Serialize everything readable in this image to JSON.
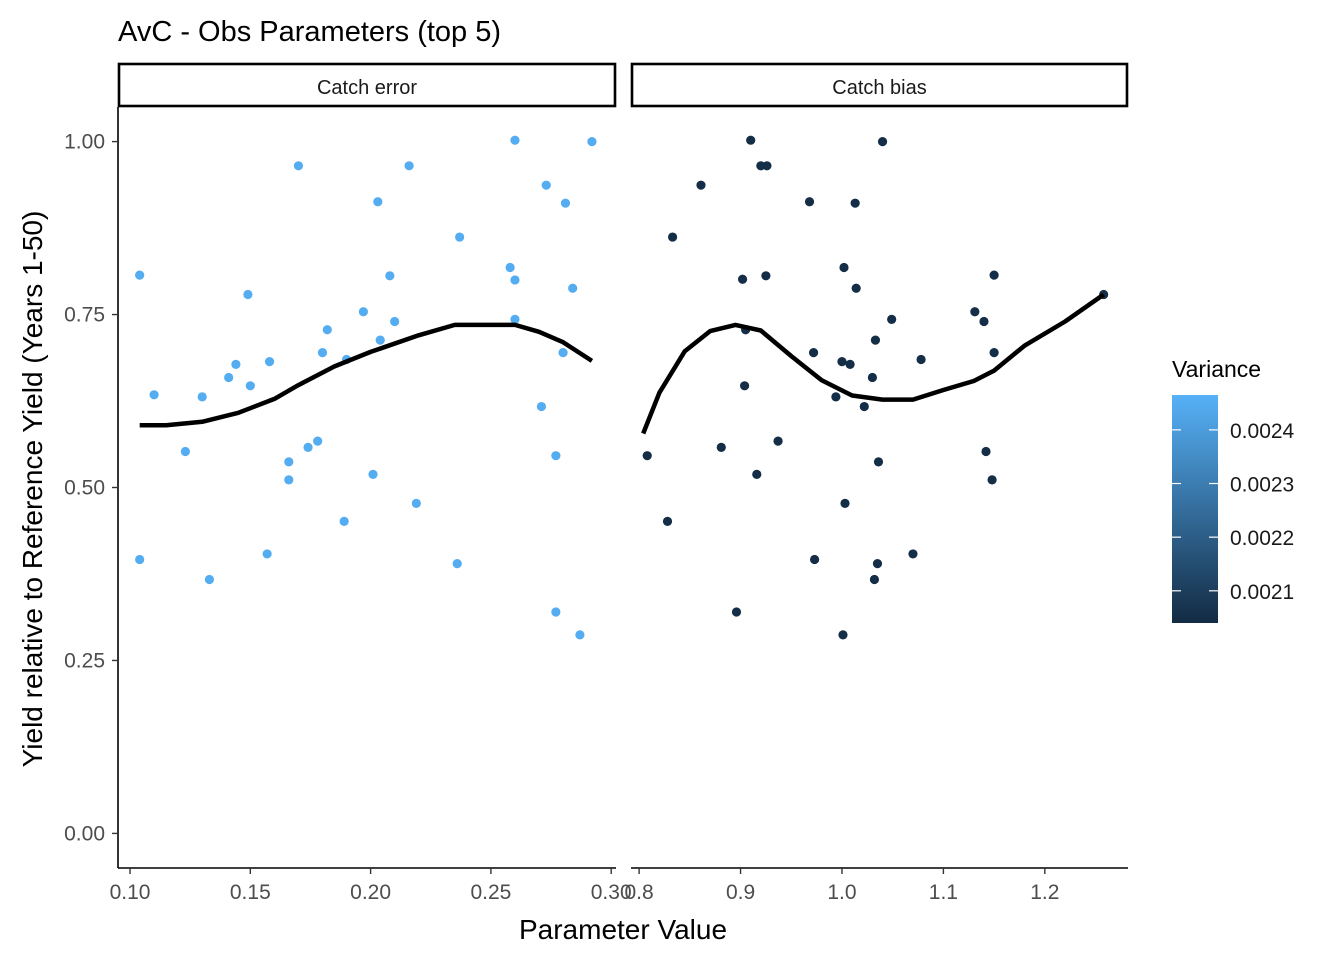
{
  "title": "AvC - Obs Parameters (top 5)",
  "colors": {
    "low": "#132B43",
    "high": "#56B1F7",
    "smooth": "#000000",
    "axis": "#000000",
    "tick_text": "#4D4D4D"
  },
  "chart_data": {
    "type": "scatter",
    "xlabel": "Parameter Value",
    "ylabel": "Yield relative to Reference Yield (Years 1-50)",
    "ylim": [
      -0.05,
      1.05
    ],
    "y_ticks": [
      {
        "value": 0.0,
        "label": "0.00"
      },
      {
        "value": 0.25,
        "label": "0.25"
      },
      {
        "value": 0.5,
        "label": "0.50"
      },
      {
        "value": 0.75,
        "label": "0.75"
      },
      {
        "value": 1.0,
        "label": "1.00"
      }
    ],
    "grid": false,
    "legend": {
      "title": "Variance",
      "placement": "right",
      "range": [
        0.00204,
        0.002465
      ],
      "ticks": [
        {
          "value": 0.0021,
          "label": "0.0021"
        },
        {
          "value": 0.0022,
          "label": "0.0022"
        },
        {
          "value": 0.0023,
          "label": "0.0023"
        },
        {
          "value": 0.0024,
          "label": "0.0024"
        }
      ]
    },
    "panels": [
      {
        "strip": "Catch error",
        "variance": 0.00245,
        "xlim": [
          0.095,
          0.302
        ],
        "x_ticks": [
          {
            "value": 0.1,
            "label": "0.10"
          },
          {
            "value": 0.15,
            "label": "0.15"
          },
          {
            "value": 0.2,
            "label": "0.20"
          },
          {
            "value": 0.25,
            "label": "0.25"
          },
          {
            "value": 0.3,
            "label": "0.30"
          }
        ],
        "points": [
          [
            0.104,
            0.807
          ],
          [
            0.104,
            0.396
          ],
          [
            0.11,
            0.634
          ],
          [
            0.123,
            0.552
          ],
          [
            0.13,
            0.631
          ],
          [
            0.133,
            0.367
          ],
          [
            0.141,
            0.659
          ],
          [
            0.144,
            0.678
          ],
          [
            0.149,
            0.779
          ],
          [
            0.15,
            0.647
          ],
          [
            0.157,
            0.404
          ],
          [
            0.158,
            0.682
          ],
          [
            0.166,
            0.537
          ],
          [
            0.166,
            0.511
          ],
          [
            0.17,
            0.965
          ],
          [
            0.174,
            0.558
          ],
          [
            0.178,
            0.567
          ],
          [
            0.18,
            0.695
          ],
          [
            0.182,
            0.728
          ],
          [
            0.189,
            0.451
          ],
          [
            0.19,
            0.685
          ],
          [
            0.197,
            0.754
          ],
          [
            0.201,
            0.519
          ],
          [
            0.203,
            0.913
          ],
          [
            0.204,
            0.713
          ],
          [
            0.208,
            0.806
          ],
          [
            0.21,
            0.74
          ],
          [
            0.216,
            0.965
          ],
          [
            0.219,
            0.477
          ],
          [
            0.236,
            0.39
          ],
          [
            0.237,
            0.862
          ],
          [
            0.258,
            0.818
          ],
          [
            0.26,
            1.002
          ],
          [
            0.26,
            0.8
          ],
          [
            0.26,
            0.743
          ],
          [
            0.271,
            0.617
          ],
          [
            0.273,
            0.937
          ],
          [
            0.277,
            0.546
          ],
          [
            0.277,
            0.32
          ],
          [
            0.28,
            0.695
          ],
          [
            0.281,
            0.911
          ],
          [
            0.284,
            0.788
          ],
          [
            0.287,
            0.287
          ],
          [
            0.292,
            1.0
          ]
        ],
        "smooth": [
          [
            0.104,
            0.59
          ],
          [
            0.115,
            0.59
          ],
          [
            0.13,
            0.595
          ],
          [
            0.145,
            0.608
          ],
          [
            0.16,
            0.628
          ],
          [
            0.17,
            0.648
          ],
          [
            0.185,
            0.675
          ],
          [
            0.2,
            0.696
          ],
          [
            0.22,
            0.72
          ],
          [
            0.235,
            0.735
          ],
          [
            0.25,
            0.735
          ],
          [
            0.26,
            0.735
          ],
          [
            0.27,
            0.725
          ],
          [
            0.28,
            0.71
          ],
          [
            0.292,
            0.683
          ]
        ]
      },
      {
        "strip": "Catch bias",
        "variance": 0.00205,
        "xlim": [
          0.792,
          1.282
        ],
        "x_ticks": [
          {
            "value": 0.8,
            "label": "0.8"
          },
          {
            "value": 0.9,
            "label": "0.9"
          },
          {
            "value": 1.0,
            "label": "1.0"
          },
          {
            "value": 1.1,
            "label": "1.1"
          },
          {
            "value": 1.2,
            "label": "1.2"
          }
        ],
        "points": [
          [
            0.808,
            0.546
          ],
          [
            0.828,
            0.451
          ],
          [
            0.833,
            0.862
          ],
          [
            0.861,
            0.937
          ],
          [
            0.881,
            0.558
          ],
          [
            0.896,
            0.32
          ],
          [
            0.902,
            0.801
          ],
          [
            0.904,
            0.647
          ],
          [
            0.905,
            0.728
          ],
          [
            0.91,
            1.002
          ],
          [
            0.916,
            0.519
          ],
          [
            0.92,
            0.965
          ],
          [
            0.926,
            0.965
          ],
          [
            0.925,
            0.806
          ],
          [
            0.937,
            0.567
          ],
          [
            0.968,
            0.913
          ],
          [
            0.972,
            0.695
          ],
          [
            0.973,
            0.396
          ],
          [
            0.994,
            0.631
          ],
          [
            1.0,
            0.682
          ],
          [
            1.001,
            0.287
          ],
          [
            1.002,
            0.818
          ],
          [
            1.003,
            0.477
          ],
          [
            1.008,
            0.678
          ],
          [
            1.013,
            0.911
          ],
          [
            1.014,
            0.788
          ],
          [
            1.022,
            0.617
          ],
          [
            1.03,
            0.659
          ],
          [
            1.032,
            0.367
          ],
          [
            1.033,
            0.713
          ],
          [
            1.035,
            0.39
          ],
          [
            1.036,
            0.537
          ],
          [
            1.04,
            1.0
          ],
          [
            1.049,
            0.743
          ],
          [
            1.07,
            0.404
          ],
          [
            1.078,
            0.685
          ],
          [
            1.131,
            0.754
          ],
          [
            1.14,
            0.74
          ],
          [
            1.142,
            0.552
          ],
          [
            1.148,
            0.511
          ],
          [
            1.15,
            0.807
          ],
          [
            1.15,
            0.695
          ],
          [
            1.258,
            0.779
          ]
        ],
        "smooth": [
          [
            0.804,
            0.578
          ],
          [
            0.82,
            0.637
          ],
          [
            0.845,
            0.697
          ],
          [
            0.87,
            0.726
          ],
          [
            0.895,
            0.735
          ],
          [
            0.92,
            0.727
          ],
          [
            0.95,
            0.69
          ],
          [
            0.98,
            0.655
          ],
          [
            1.01,
            0.633
          ],
          [
            1.04,
            0.627
          ],
          [
            1.07,
            0.627
          ],
          [
            1.1,
            0.641
          ],
          [
            1.13,
            0.654
          ],
          [
            1.15,
            0.669
          ],
          [
            1.18,
            0.705
          ],
          [
            1.22,
            0.74
          ],
          [
            1.258,
            0.779
          ]
        ]
      }
    ]
  }
}
